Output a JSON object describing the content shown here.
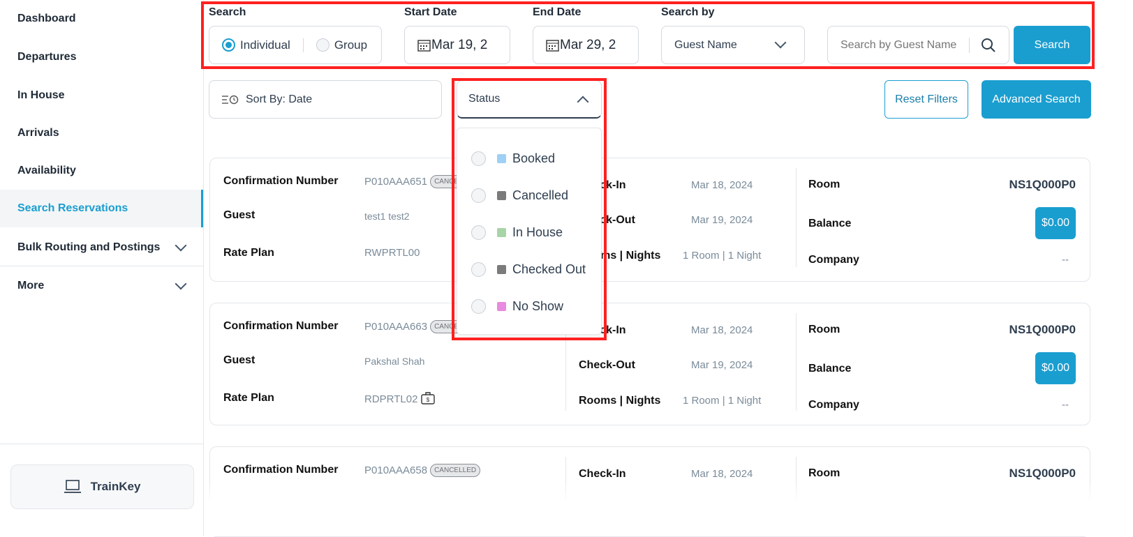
{
  "sidebar": {
    "items": [
      {
        "label": "Dashboard"
      },
      {
        "label": "Departures"
      },
      {
        "label": "In House"
      },
      {
        "label": "Arrivals"
      },
      {
        "label": "Availability"
      },
      {
        "label": "Search Reservations",
        "active": true
      },
      {
        "label": "Bulk Routing and Postings",
        "expandable": true
      },
      {
        "label": "More",
        "expandable": true
      }
    ],
    "trainkey": "TrainKey"
  },
  "search": {
    "search_label": "Search",
    "individual": "Individual",
    "group": "Group",
    "selected": "Individual",
    "start_label": "Start Date",
    "start_value": "Mar 19, 2",
    "end_label": "End Date",
    "end_value": "Mar 29, 2",
    "search_by_label": "Search by",
    "search_by_value": "Guest Name",
    "placeholder": "Search by Guest Name",
    "search_button": "Search"
  },
  "filters": {
    "sort": "Sort By: Date",
    "status": "Status",
    "reset": "Reset Filters",
    "advanced": "Advanced Search",
    "status_options": [
      {
        "label": "Booked",
        "color": "#9fd0f5"
      },
      {
        "label": "Cancelled",
        "color": "#7b7b7b"
      },
      {
        "label": "In House",
        "color": "#a8d4a8"
      },
      {
        "label": "Checked Out",
        "color": "#7b7b7b"
      },
      {
        "label": "No Show",
        "color": "#e88ae0"
      }
    ]
  },
  "labels": {
    "conf": "Confirmation Number",
    "guest": "Guest",
    "rate": "Rate Plan",
    "checkin": "Check-In",
    "checkout": "Check-Out",
    "rooms": "Rooms | Nights",
    "room": "Room",
    "balance": "Balance",
    "company": "Company"
  },
  "reservations": [
    {
      "conf": "P010AAA651",
      "badge": "CANCELLED",
      "guest": "test1 test2",
      "rate": "RWPRTL00",
      "checkin": "Mar 18, 2024",
      "checkout": "Mar 19, 2024",
      "rooms": "1 Room | 1 Night",
      "room": "NS1Q000P0",
      "balance": "$0.00",
      "company": "--"
    },
    {
      "conf": "P010AAA663",
      "badge": "CANCELLED",
      "guest": "Pakshal Shah",
      "rate": "RDPRTL02",
      "checkin": "Mar 18, 2024",
      "checkout": "Mar 19, 2024",
      "rooms": "1 Room | 1 Night",
      "room": "NS1Q000P0",
      "balance": "$0.00",
      "company": "--"
    },
    {
      "conf": "P010AAA658",
      "badge": "CANCELLED",
      "checkin": "Mar 18, 2024",
      "room": "NS1Q000P0"
    }
  ]
}
